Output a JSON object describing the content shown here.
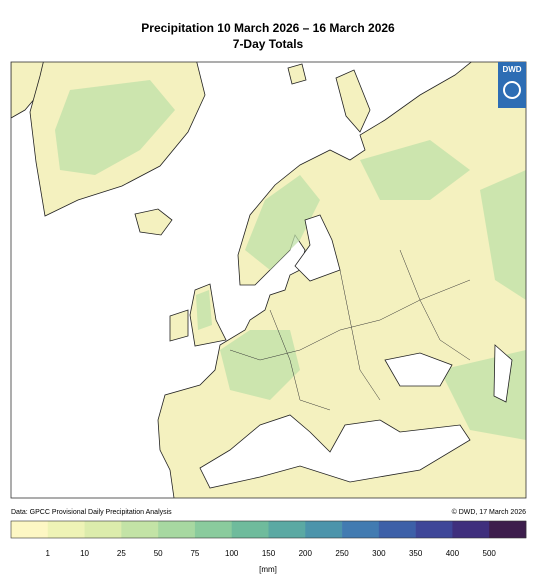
{
  "header": {
    "title": "Precipitation 10 March 2026 – 16 March 2026",
    "subtitle": "7-Day Totals"
  },
  "logo": {
    "label": "DWD"
  },
  "footer": {
    "source": "Data: GPCC Provisional Daily Precipitation Analysis",
    "copyright": "© DWD, 17 March 2026"
  },
  "legend": {
    "colors": [
      "#fdf7c4",
      "#eef3b6",
      "#dcecac",
      "#c3e3a6",
      "#a7d8a1",
      "#8acb9d",
      "#6fbb9c",
      "#5ba9a3",
      "#4c94ab",
      "#427bb1",
      "#3d60a8",
      "#3e4698",
      "#3f2f7d",
      "#3d1d4c"
    ],
    "ticks": [
      1,
      10,
      25,
      50,
      75,
      100,
      150,
      200,
      250,
      300,
      350,
      400,
      500
    ],
    "unit": "[mm]"
  }
}
